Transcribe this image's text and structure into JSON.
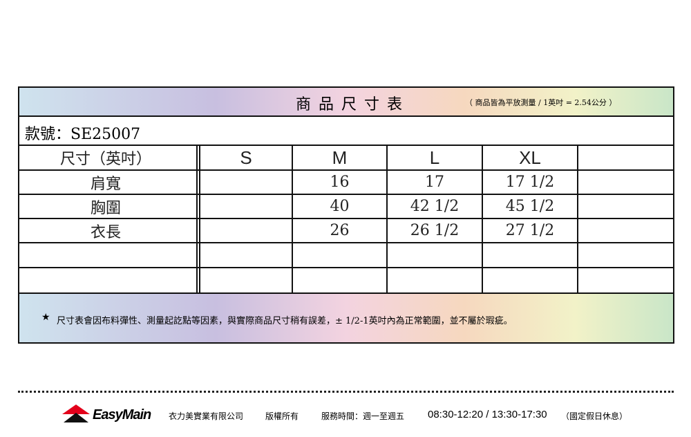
{
  "header": {
    "title": "商 品 尺 寸 表",
    "note": "（ 商品皆為平放測量 / 1英吋 = 2.54公分 ）"
  },
  "style_no": "款號：SE25007",
  "columns": [
    "尺寸（英吋）",
    "S",
    "M",
    "L",
    "XL",
    ""
  ],
  "rows": [
    {
      "label": "肩寬",
      "values": [
        "",
        "16",
        "17",
        "17 1/2",
        ""
      ]
    },
    {
      "label": "胸圍",
      "values": [
        "",
        "40",
        "42 1/2",
        "45 1/2",
        ""
      ]
    },
    {
      "label": "衣長",
      "values": [
        "",
        "26",
        "26 1/2",
        "27 1/2",
        ""
      ]
    },
    {
      "label": "",
      "values": [
        "",
        "",
        "",
        "",
        ""
      ]
    },
    {
      "label": "",
      "values": [
        "",
        "",
        "",
        "",
        ""
      ]
    }
  ],
  "footnote": {
    "star": "★",
    "text": "尺寸表會因布料彈性、測量起訖點等因素，與實際商品尺寸稍有誤差，± 1/2-1英吋內為正常範圍，並不屬於瑕疵。"
  },
  "footer": {
    "brand": "EasyMain",
    "company": "衣力美實業有限公司",
    "rights": "版權所有",
    "hours_label": "服務時間：週一至週五",
    "hours": "08:30-12:20 / 13:30-17:30",
    "holiday": "（國定假日休息）"
  },
  "colors": {
    "logo_red": "#e3001b",
    "border": "#111111"
  }
}
